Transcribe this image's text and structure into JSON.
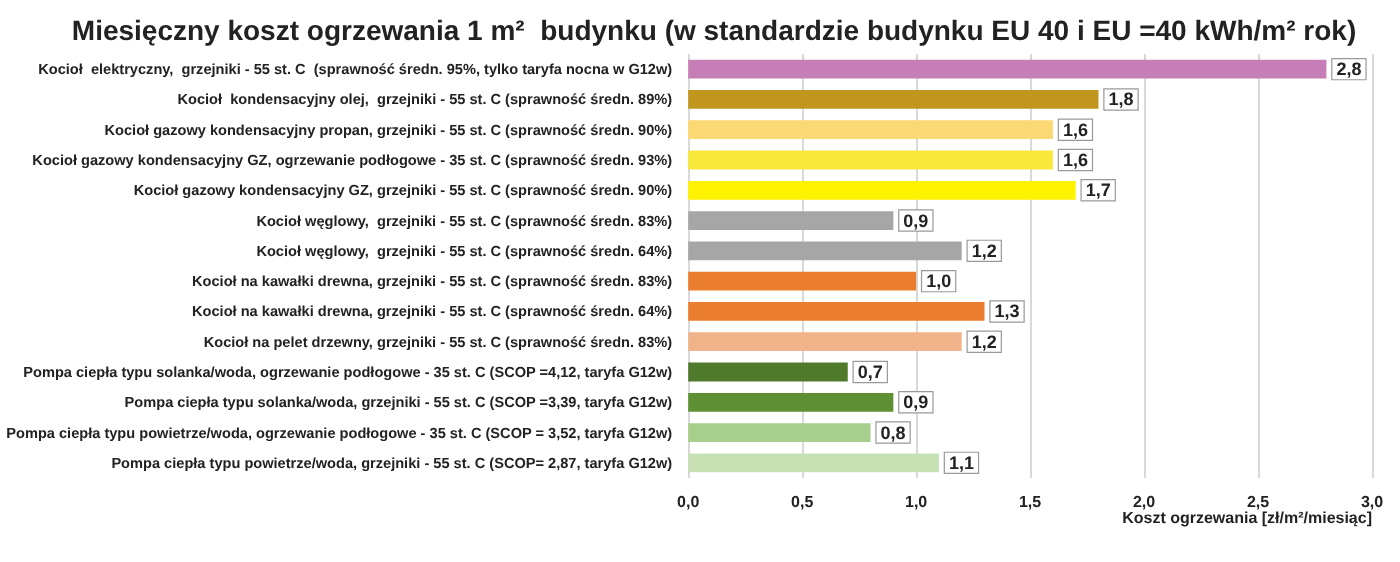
{
  "chart_data": {
    "type": "bar",
    "orientation": "horizontal",
    "title": "Miesięczny koszt ogrzewania 1 m²  budynku (w standardzie budynku EU 40 i EU =40 kWh/m² rok)",
    "xlabel": "Koszt ogrzewania [zł/m²/miesiąc]",
    "categories": [
      "Kocioł  elektryczny,  grzejniki - 55 st. C  (sprawność średn. 95%, tylko taryfa nocna w G12w)",
      "Kocioł  kondensacyjny olej,  grzejniki - 55 st. C (sprawność średn. 89%)",
      "Kocioł gazowy kondensacyjny propan, grzejniki - 55 st. C (sprawność średn. 90%)",
      "Kocioł gazowy kondensacyjny GZ, ogrzewanie podłogowe - 35 st. C (sprawność średn. 93%)",
      "Kocioł gazowy kondensacyjny GZ, grzejniki - 55 st. C (sprawność średn. 90%)",
      "Kocioł węglowy,  grzejniki - 55 st. C (sprawność średn. 83%)",
      "Kocioł węglowy,  grzejniki - 55 st. C (sprawność średn. 64%)",
      "Kocioł na kawałki drewna, grzejniki - 55 st. C (sprawność średn. 83%)",
      "Kocioł na kawałki drewna, grzejniki - 55 st. C (sprawność średn. 64%)",
      "Kocioł na pelet drzewny, grzejniki - 55 st. C (sprawność średn. 83%)",
      "Pompa ciepła typu solanka/woda, ogrzewanie podłogowe - 35 st. C (SCOP =4,12, taryfa G12w)",
      "Pompa ciepła typu solanka/woda, grzejniki - 55 st. C (SCOP =3,39, taryfa G12w)",
      "Pompa ciepła typu powietrze/woda, ogrzewanie podłogowe - 35 st. C (SCOP = 3,52, taryfa G12w)",
      "Pompa ciepła typu powietrze/woda, grzejniki - 55 st. C (SCOP= 2,87, taryfa G12w)"
    ],
    "values": [
      2.8,
      1.8,
      1.6,
      1.6,
      1.7,
      0.9,
      1.2,
      1.0,
      1.3,
      1.2,
      0.7,
      0.9,
      0.8,
      1.1
    ],
    "value_labels": [
      "2,8",
      "1,8",
      "1,6",
      "1,6",
      "1,7",
      "0,9",
      "1,2",
      "1,0",
      "1,3",
      "1,2",
      "0,7",
      "0,9",
      "0,8",
      "1,1"
    ],
    "colors": [
      "#c67fb6",
      "#c0961c",
      "#fcd873",
      "#f7e83a",
      "#fff200",
      "#a6a6a6",
      "#a6a6a6",
      "#ea7e2e",
      "#ea7e2e",
      "#f1b38a",
      "#4f7a2c",
      "#5e8f32",
      "#a5cf8a",
      "#c7e1b4"
    ],
    "xlim": [
      0,
      3
    ],
    "xticks": [
      {
        "value": 0,
        "label": "0,0"
      },
      {
        "value": 0.5,
        "label": "0,5"
      },
      {
        "value": 1,
        "label": "1,0"
      },
      {
        "value": 1.5,
        "label": "1,5"
      },
      {
        "value": 2,
        "label": "2,0"
      },
      {
        "value": 2.5,
        "label": "2,5"
      },
      {
        "value": 3,
        "label": "3,0"
      }
    ],
    "grid": "x"
  }
}
